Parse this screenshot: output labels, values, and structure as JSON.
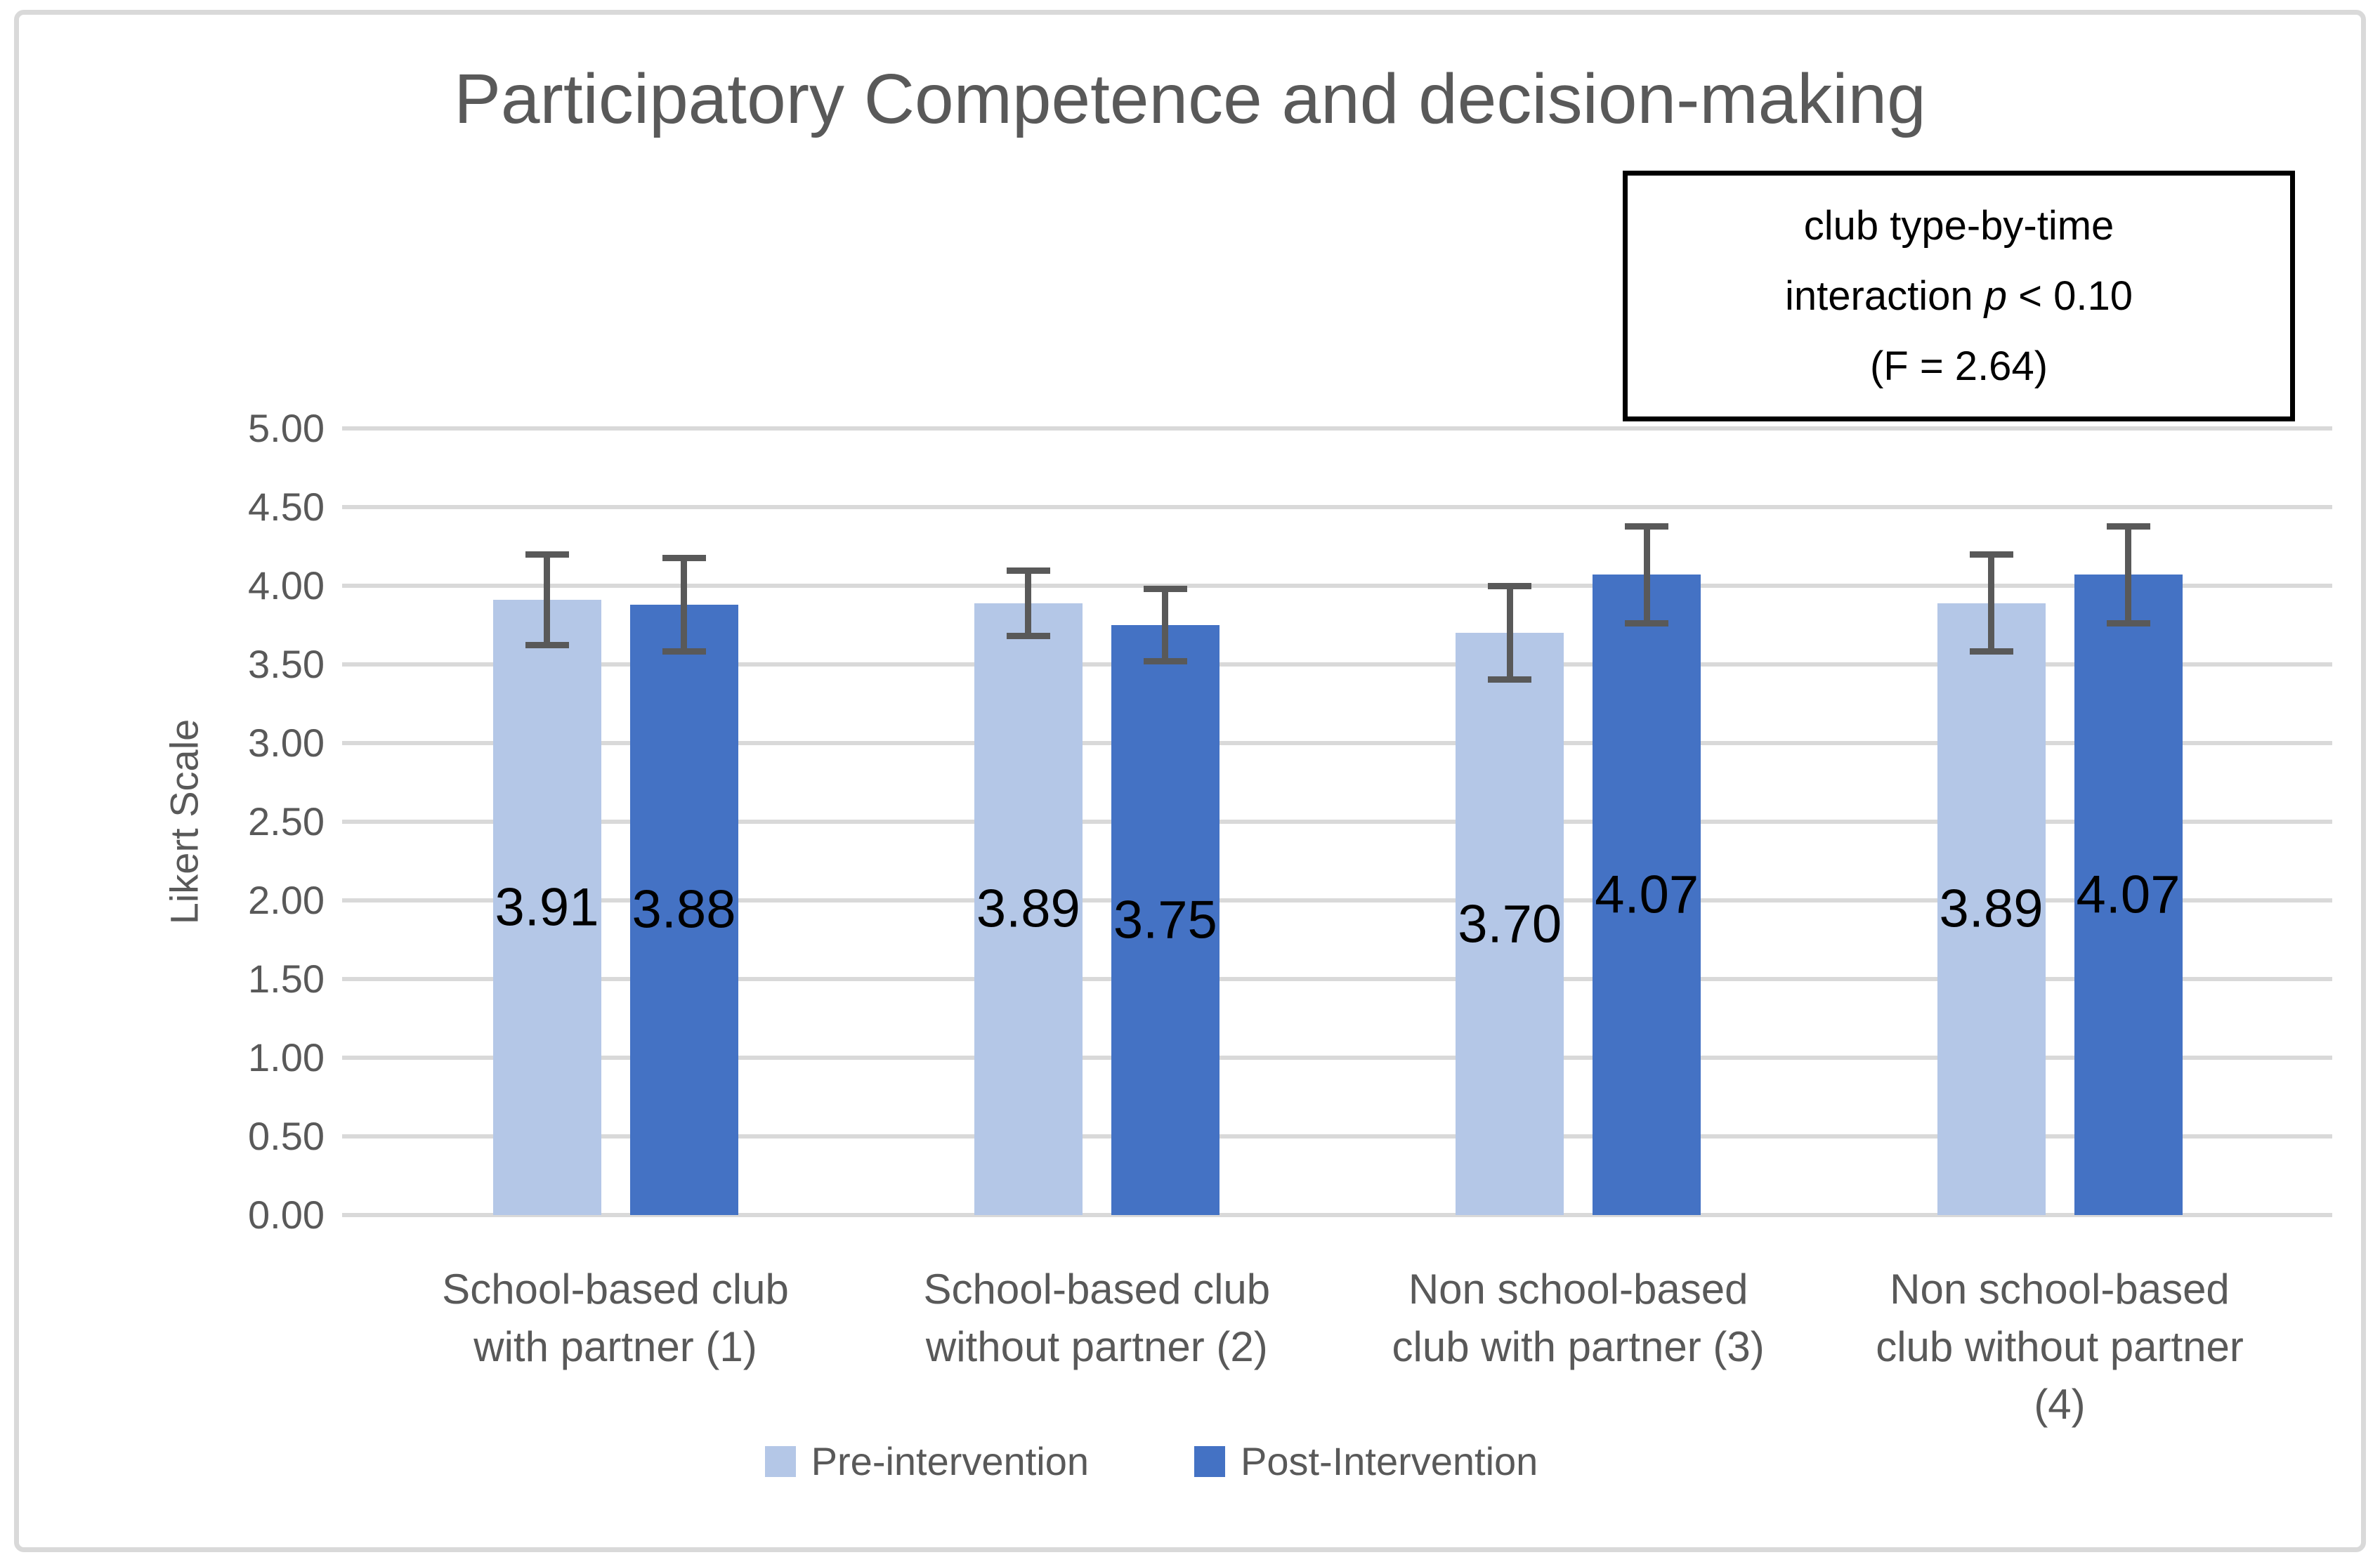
{
  "chart_data": {
    "type": "bar",
    "title": "Participatory Competence and decision-making",
    "ylabel": "Likert Scale",
    "ylim": [
      0,
      5
    ],
    "ytick_step": 0.5,
    "ytick_labels": [
      "0.00",
      "0.50",
      "1.00",
      "1.50",
      "2.00",
      "2.50",
      "3.00",
      "3.50",
      "4.00",
      "4.50",
      "5.00"
    ],
    "grid": true,
    "legend_position": "bottom",
    "categories": [
      [
        "School-based club",
        "with partner (1)"
      ],
      [
        "School-based club",
        "without partner (2)"
      ],
      [
        "Non school-based",
        "club with partner (3)"
      ],
      [
        "Non school-based",
        "club without partner",
        "(4)"
      ]
    ],
    "series": [
      {
        "name": "Pre-intervention",
        "color": "#B4C7E7",
        "values": [
          3.91,
          3.89,
          3.7,
          3.89
        ],
        "labels": [
          "3.91",
          "3.89",
          "3.70",
          "3.89"
        ],
        "error": [
          0.29,
          0.21,
          0.3,
          0.31
        ]
      },
      {
        "name": "Post-Intervention",
        "color": "#4472C4",
        "values": [
          3.88,
          3.75,
          4.07,
          4.07
        ],
        "labels": [
          "3.88",
          "3.75",
          "4.07",
          "4.07"
        ],
        "error": [
          0.3,
          0.23,
          0.31,
          0.31
        ]
      }
    ],
    "annotation": {
      "line1": "club type-by-time",
      "line2a": "interaction ",
      "line2b": "p",
      "line2c": " < 0.10",
      "line3": "(F = 2.64)"
    },
    "colors": {
      "gridline": "#D9D9D9",
      "axis_text": "#595959",
      "error_bar": "#595959",
      "data_label": "#000000",
      "border": "#D9D9D9",
      "annotation_border": "#000000"
    }
  }
}
